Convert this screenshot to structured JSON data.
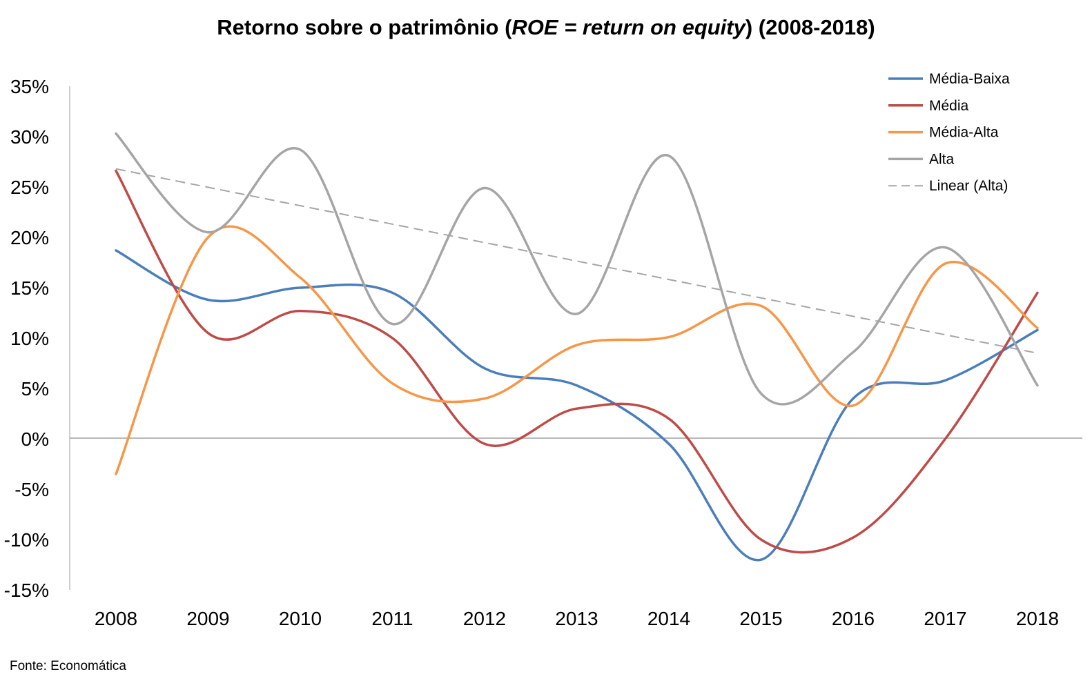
{
  "chart_data": {
    "type": "line",
    "title_main": "Retorno sobre o patrimônio (",
    "title_italic": "ROE = return on equity",
    "title_end": ") (2008-2018)",
    "source": "Fonte: Economática",
    "x": [
      "2008",
      "2009",
      "2010",
      "2011",
      "2012",
      "2013",
      "2014",
      "2015",
      "2016",
      "2017",
      "2018"
    ],
    "yticks": [
      "35%",
      "30%",
      "25%",
      "20%",
      "15%",
      "10%",
      "5%",
      "0%",
      "-5%",
      "-10%",
      "-15%"
    ],
    "ylim": [
      -15,
      35
    ],
    "legend_position": "top-right",
    "series": [
      {
        "name": "Média-Baixa",
        "color": "#4a7ebb",
        "values": [
          18.7,
          13.8,
          15.0,
          14.5,
          7.0,
          5.3,
          -0.5,
          -12.0,
          4.0,
          5.8,
          10.8
        ]
      },
      {
        "name": "Média",
        "color": "#be4b48",
        "values": [
          26.6,
          10.5,
          12.7,
          10.0,
          -0.5,
          3.0,
          2.0,
          -10.0,
          -9.8,
          0.0,
          14.5
        ]
      },
      {
        "name": "Média-Alta",
        "color": "#f79646",
        "values": [
          -3.5,
          20.0,
          16.0,
          5.5,
          4.0,
          9.3,
          10.1,
          13.2,
          3.3,
          17.4,
          11.0
        ]
      },
      {
        "name": "Alta",
        "color": "#a5a5a5",
        "values": [
          30.3,
          20.5,
          28.7,
          11.4,
          24.9,
          12.4,
          28.1,
          4.5,
          8.6,
          19.0,
          5.3
        ]
      }
    ],
    "trendline": {
      "name": "Linear (Alta)",
      "color": "#a5a5a5",
      "start": 26.8,
      "end": 8.5
    }
  }
}
